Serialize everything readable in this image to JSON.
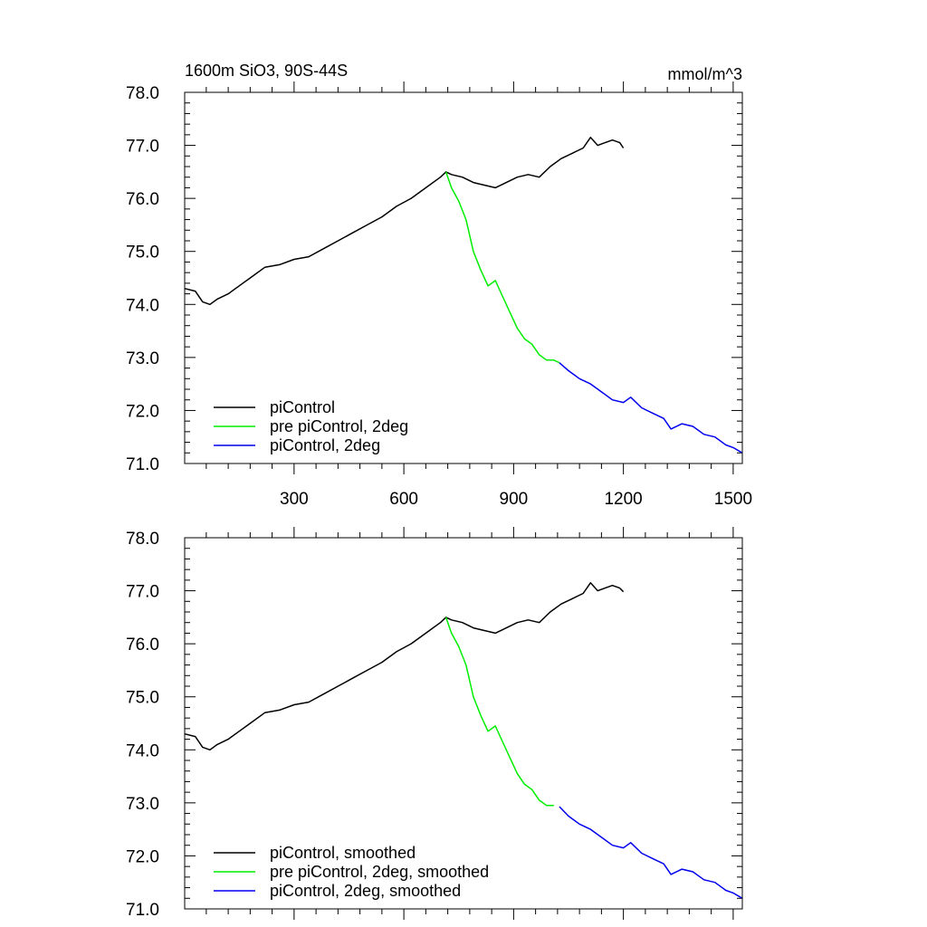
{
  "chart_data": [
    {
      "type": "line",
      "title_left": "1600m SiO3, 90S-44S",
      "title_right": "mmol/m^3",
      "xlim": [
        1,
        1525
      ],
      "ylim": [
        71.0,
        78.0
      ],
      "xticks": [
        300,
        600,
        900,
        1200,
        1500
      ],
      "xtick_labels": [
        "300",
        "600",
        "900",
        "1200",
        "1500"
      ],
      "yticks": [
        71.0,
        72.0,
        73.0,
        74.0,
        75.0,
        76.0,
        77.0,
        78.0
      ],
      "ytick_labels": [
        "71.0",
        "72.0",
        "73.0",
        "74.0",
        "75.0",
        "76.0",
        "77.0",
        "78.0"
      ],
      "legend_position": "bottom-left",
      "series": [
        {
          "name": "piControl",
          "color": "#000000",
          "x": [
            1,
            30,
            50,
            70,
            90,
            120,
            150,
            180,
            220,
            260,
            300,
            340,
            380,
            420,
            460,
            500,
            540,
            580,
            620,
            660,
            700,
            715,
            730,
            760,
            790,
            820,
            850,
            880,
            910,
            940,
            970,
            1000,
            1030,
            1060,
            1090,
            1110,
            1130,
            1150,
            1170,
            1190,
            1200
          ],
          "y": [
            74.3,
            74.25,
            74.05,
            74.0,
            74.1,
            74.2,
            74.35,
            74.5,
            74.7,
            74.75,
            74.85,
            74.9,
            75.05,
            75.2,
            75.35,
            75.5,
            75.65,
            75.85,
            76.0,
            76.2,
            76.4,
            76.5,
            76.45,
            76.4,
            76.3,
            76.25,
            76.2,
            76.3,
            76.4,
            76.45,
            76.4,
            76.6,
            76.75,
            76.85,
            76.95,
            77.15,
            77.0,
            77.05,
            77.1,
            77.05,
            76.95
          ]
        },
        {
          "name": "pre piControl, 2deg",
          "color": "#00ee00",
          "x": [
            715,
            730,
            750,
            770,
            790,
            810,
            830,
            850,
            870,
            890,
            910,
            930,
            950,
            970,
            990,
            1010,
            1025
          ],
          "y": [
            76.5,
            76.2,
            75.95,
            75.6,
            75.0,
            74.65,
            74.35,
            74.45,
            74.15,
            73.85,
            73.55,
            73.35,
            73.25,
            73.05,
            72.95,
            72.95,
            72.9
          ]
        },
        {
          "name": "piControl, 2deg",
          "color": "#0000ee",
          "x": [
            1025,
            1050,
            1080,
            1110,
            1140,
            1170,
            1200,
            1220,
            1250,
            1280,
            1310,
            1330,
            1360,
            1390,
            1420,
            1450,
            1480,
            1500,
            1525
          ],
          "y": [
            72.9,
            72.75,
            72.6,
            72.5,
            72.35,
            72.2,
            72.15,
            72.25,
            72.05,
            71.95,
            71.85,
            71.65,
            71.75,
            71.7,
            71.55,
            71.5,
            71.35,
            71.3,
            71.2
          ]
        }
      ]
    },
    {
      "type": "line",
      "xlim": [
        1,
        1525
      ],
      "ylim": [
        71.0,
        78.0
      ],
      "xticks": [
        300,
        600,
        900,
        1200,
        1500
      ],
      "yticks": [
        71.0,
        72.0,
        73.0,
        74.0,
        75.0,
        76.0,
        77.0,
        78.0
      ],
      "ytick_labels": [
        "71.0",
        "72.0",
        "73.0",
        "74.0",
        "75.0",
        "76.0",
        "77.0",
        "78.0"
      ],
      "legend_position": "bottom-left",
      "series": [
        {
          "name": "piControl, smoothed",
          "color": "#000000",
          "x": [
            1,
            30,
            50,
            70,
            90,
            120,
            150,
            180,
            220,
            260,
            300,
            340,
            380,
            420,
            460,
            500,
            540,
            580,
            620,
            660,
            700,
            715,
            730,
            760,
            790,
            820,
            850,
            880,
            910,
            940,
            970,
            1000,
            1030,
            1060,
            1090,
            1110,
            1130,
            1150,
            1170,
            1190,
            1200
          ],
          "y": [
            74.3,
            74.25,
            74.05,
            74.0,
            74.1,
            74.2,
            74.35,
            74.5,
            74.7,
            74.75,
            74.85,
            74.9,
            75.05,
            75.2,
            75.35,
            75.5,
            75.65,
            75.85,
            76.0,
            76.2,
            76.4,
            76.5,
            76.45,
            76.4,
            76.3,
            76.25,
            76.2,
            76.3,
            76.4,
            76.45,
            76.4,
            76.6,
            76.75,
            76.85,
            76.95,
            77.15,
            77.0,
            77.05,
            77.1,
            77.05,
            76.98
          ]
        },
        {
          "name": "pre piControl, 2deg, smoothed",
          "color": "#00ee00",
          "x": [
            715,
            730,
            750,
            770,
            790,
            810,
            830,
            850,
            870,
            890,
            910,
            930,
            950,
            970,
            990,
            1010
          ],
          "y": [
            76.5,
            76.2,
            75.95,
            75.6,
            75.0,
            74.65,
            74.35,
            74.45,
            74.15,
            73.85,
            73.55,
            73.35,
            73.25,
            73.05,
            72.95,
            72.95
          ]
        },
        {
          "name": "piControl, 2deg, smoothed",
          "color": "#0000ee",
          "x": [
            1025,
            1050,
            1080,
            1110,
            1140,
            1170,
            1200,
            1220,
            1250,
            1280,
            1310,
            1330,
            1360,
            1390,
            1420,
            1450,
            1480,
            1500,
            1525
          ],
          "y": [
            72.93,
            72.75,
            72.6,
            72.5,
            72.35,
            72.2,
            72.15,
            72.25,
            72.05,
            71.95,
            71.85,
            71.65,
            71.75,
            71.7,
            71.55,
            71.5,
            71.35,
            71.3,
            71.2
          ]
        }
      ]
    }
  ]
}
